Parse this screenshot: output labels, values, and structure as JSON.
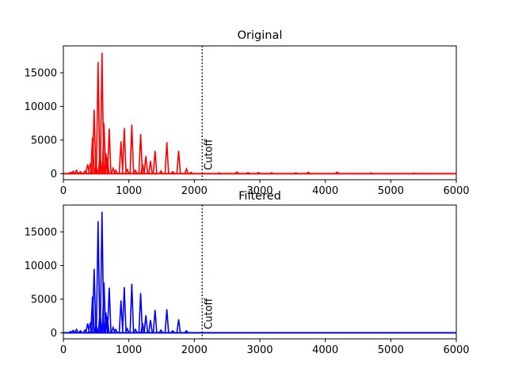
{
  "chart_data": [
    {
      "type": "line",
      "title": "Original",
      "color": "#ff0000",
      "xlabel": "",
      "ylabel": "",
      "xlim": [
        0,
        6000
      ],
      "ylim": [
        -900,
        19000
      ],
      "xticks": [
        0,
        1000,
        2000,
        3000,
        4000,
        5000,
        6000
      ],
      "xtick_labels": [
        "0",
        "1000",
        "2000",
        "3000",
        "4000",
        "5000",
        "6000"
      ],
      "yticks": [
        0,
        5000,
        10000,
        15000
      ],
      "ytick_labels": [
        "0",
        "5000",
        "10000",
        "15000"
      ],
      "grid": false,
      "cutoff": {
        "x": 2120,
        "label": "Cutoff",
        "style": "dotted",
        "color": "#000000"
      },
      "peaks": [
        {
          "x": 110,
          "y": 200
        },
        {
          "x": 150,
          "y": 350
        },
        {
          "x": 200,
          "y": 500
        },
        {
          "x": 260,
          "y": 300
        },
        {
          "x": 330,
          "y": 400
        },
        {
          "x": 370,
          "y": 1400
        },
        {
          "x": 410,
          "y": 1500
        },
        {
          "x": 445,
          "y": 5400
        },
        {
          "x": 470,
          "y": 9500
        },
        {
          "x": 500,
          "y": 1200
        },
        {
          "x": 530,
          "y": 16600
        },
        {
          "x": 560,
          "y": 3000
        },
        {
          "x": 590,
          "y": 18000
        },
        {
          "x": 620,
          "y": 7500
        },
        {
          "x": 650,
          "y": 3000
        },
        {
          "x": 670,
          "y": 2400
        },
        {
          "x": 700,
          "y": 6700
        },
        {
          "x": 760,
          "y": 800
        },
        {
          "x": 800,
          "y": 500
        },
        {
          "x": 880,
          "y": 4800
        },
        {
          "x": 930,
          "y": 6800
        },
        {
          "x": 975,
          "y": 600
        },
        {
          "x": 1045,
          "y": 7300
        },
        {
          "x": 1100,
          "y": 500
        },
        {
          "x": 1180,
          "y": 5900
        },
        {
          "x": 1210,
          "y": 1400
        },
        {
          "x": 1260,
          "y": 2600
        },
        {
          "x": 1330,
          "y": 1900
        },
        {
          "x": 1400,
          "y": 3400
        },
        {
          "x": 1490,
          "y": 400
        },
        {
          "x": 1580,
          "y": 4700
        },
        {
          "x": 1670,
          "y": 300
        },
        {
          "x": 1760,
          "y": 3400
        },
        {
          "x": 1880,
          "y": 700
        },
        {
          "x": 1950,
          "y": 200
        },
        {
          "x": 2380,
          "y": 120
        },
        {
          "x": 2650,
          "y": 250
        },
        {
          "x": 2820,
          "y": 150
        },
        {
          "x": 2980,
          "y": 180
        },
        {
          "x": 3180,
          "y": 140
        },
        {
          "x": 3550,
          "y": 130
        },
        {
          "x": 3740,
          "y": 200
        },
        {
          "x": 4180,
          "y": 240
        },
        {
          "x": 4700,
          "y": 100
        },
        {
          "x": 5350,
          "y": 80
        }
      ]
    },
    {
      "type": "line",
      "title": "Filtered",
      "color": "#0000ff",
      "xlabel": "",
      "ylabel": "",
      "xlim": [
        0,
        6000
      ],
      "ylim": [
        -900,
        19000
      ],
      "xticks": [
        0,
        1000,
        2000,
        3000,
        4000,
        5000,
        6000
      ],
      "xtick_labels": [
        "0",
        "1000",
        "2000",
        "3000",
        "4000",
        "5000",
        "6000"
      ],
      "yticks": [
        0,
        5000,
        10000,
        15000
      ],
      "ytick_labels": [
        "0",
        "5000",
        "10000",
        "15000"
      ],
      "grid": false,
      "cutoff": {
        "x": 2120,
        "label": "Cutoff",
        "style": "dotted",
        "color": "#000000"
      },
      "peaks": [
        {
          "x": 110,
          "y": 200
        },
        {
          "x": 150,
          "y": 350
        },
        {
          "x": 200,
          "y": 500
        },
        {
          "x": 260,
          "y": 300
        },
        {
          "x": 330,
          "y": 400
        },
        {
          "x": 370,
          "y": 1400
        },
        {
          "x": 410,
          "y": 1500
        },
        {
          "x": 445,
          "y": 5400
        },
        {
          "x": 470,
          "y": 9500
        },
        {
          "x": 500,
          "y": 1200
        },
        {
          "x": 530,
          "y": 16600
        },
        {
          "x": 560,
          "y": 3000
        },
        {
          "x": 590,
          "y": 18000
        },
        {
          "x": 620,
          "y": 7500
        },
        {
          "x": 650,
          "y": 3000
        },
        {
          "x": 670,
          "y": 2400
        },
        {
          "x": 700,
          "y": 6700
        },
        {
          "x": 760,
          "y": 800
        },
        {
          "x": 800,
          "y": 500
        },
        {
          "x": 880,
          "y": 4800
        },
        {
          "x": 930,
          "y": 6800
        },
        {
          "x": 975,
          "y": 600
        },
        {
          "x": 1045,
          "y": 7300
        },
        {
          "x": 1100,
          "y": 500
        },
        {
          "x": 1180,
          "y": 5900
        },
        {
          "x": 1210,
          "y": 1400
        },
        {
          "x": 1260,
          "y": 2600
        },
        {
          "x": 1330,
          "y": 1900
        },
        {
          "x": 1400,
          "y": 3400
        },
        {
          "x": 1490,
          "y": 400
        },
        {
          "x": 1580,
          "y": 3500
        },
        {
          "x": 1670,
          "y": 300
        },
        {
          "x": 1760,
          "y": 2000
        },
        {
          "x": 1880,
          "y": 300
        }
      ]
    }
  ]
}
